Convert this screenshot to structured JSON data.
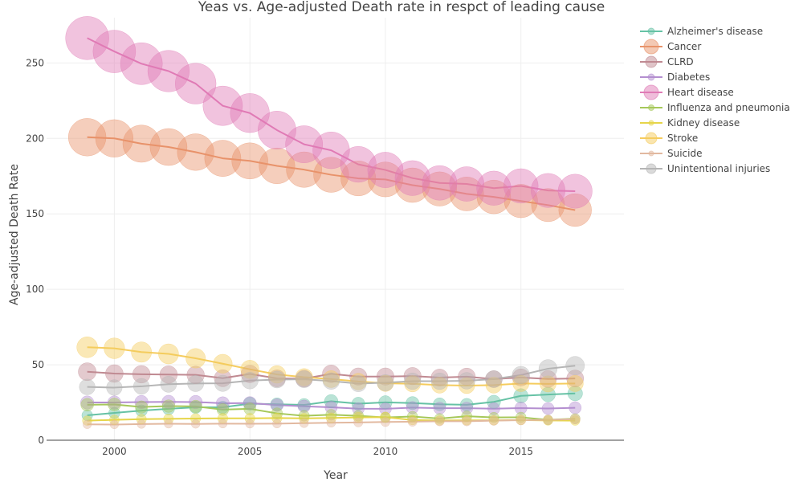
{
  "chart_data": {
    "type": "scatter",
    "title": "Yeas vs. Age-adjusted Death rate in respct of leading cause",
    "xlabel": "Year",
    "ylabel": "Age-adjusted Death Rate",
    "xlim": [
      1997.5,
      2018.8
    ],
    "ylim": [
      0,
      280
    ],
    "xticks": [
      2000,
      2005,
      2010,
      2015
    ],
    "yticks": [
      0,
      50,
      100,
      150,
      200,
      250
    ],
    "grid": true,
    "legend_position": "top-right",
    "marker_size_encodes": "death rate",
    "x": [
      1999,
      2000,
      2001,
      2002,
      2003,
      2004,
      2005,
      2006,
      2007,
      2008,
      2009,
      2010,
      2011,
      2012,
      2013,
      2014,
      2015,
      2016,
      2017
    ],
    "series": [
      {
        "name": "Alzheimer's disease",
        "color": "#66c2a5",
        "values": [
          16.5,
          18.1,
          19.6,
          20.8,
          21.8,
          21.8,
          24.2,
          23.8,
          23.4,
          25.8,
          24.2,
          25.1,
          24.6,
          23.8,
          23.5,
          25.4,
          29.4,
          30.3,
          31.0
        ]
      },
      {
        "name": "Cancer",
        "color": "#e8936a",
        "values": [
          200.8,
          200.0,
          196.5,
          194.3,
          190.9,
          186.8,
          185.1,
          181.8,
          179.3,
          175.9,
          173.5,
          172.8,
          169.0,
          166.5,
          163.2,
          161.2,
          158.5,
          155.8,
          152.5
        ]
      },
      {
        "name": "CLRD",
        "color": "#c08a92",
        "values": [
          45.4,
          44.2,
          43.7,
          43.5,
          43.3,
          41.1,
          43.9,
          41.0,
          40.8,
          44.0,
          42.2,
          42.2,
          42.5,
          41.5,
          42.1,
          40.5,
          41.6,
          40.6,
          40.9
        ]
      },
      {
        "name": "Diabetes",
        "color": "#b48fd0",
        "values": [
          25.0,
          25.0,
          25.3,
          25.4,
          25.3,
          24.5,
          24.6,
          23.3,
          22.5,
          21.8,
          20.9,
          20.8,
          21.6,
          21.2,
          21.2,
          20.9,
          21.3,
          21.0,
          21.5
        ]
      },
      {
        "name": "Heart disease",
        "color": "#e07bb5",
        "values": [
          266.5,
          257.6,
          249.5,
          244.6,
          236.3,
          221.6,
          216.8,
          205.5,
          196.1,
          192.1,
          182.8,
          179.1,
          173.7,
          170.5,
          169.8,
          167.0,
          168.5,
          165.5,
          165.0
        ]
      },
      {
        "name": "Influenza and pneumonia",
        "color": "#a6c85a",
        "values": [
          23.5,
          23.7,
          22.0,
          22.6,
          22.4,
          20.3,
          20.8,
          17.8,
          16.2,
          16.9,
          16.2,
          15.1,
          15.7,
          14.4,
          15.9,
          15.1,
          15.2,
          13.5,
          14.3
        ]
      },
      {
        "name": "Kidney disease",
        "color": "#e6d54a",
        "values": [
          13.0,
          13.5,
          14.0,
          14.2,
          14.4,
          14.5,
          14.5,
          14.7,
          14.5,
          14.8,
          15.1,
          15.3,
          13.4,
          13.1,
          13.2,
          13.2,
          13.4,
          13.1,
          13.0
        ]
      },
      {
        "name": "Stroke",
        "color": "#f5cc5e",
        "values": [
          61.6,
          60.9,
          58.4,
          57.2,
          54.3,
          50.7,
          47.0,
          43.6,
          41.8,
          40.5,
          38.9,
          37.7,
          37.4,
          36.5,
          36.2,
          36.5,
          37.6,
          37.3,
          37.6
        ]
      },
      {
        "name": "Suicide",
        "color": "#e2b9a0",
        "values": [
          10.5,
          10.4,
          10.7,
          10.9,
          10.8,
          11.0,
          10.9,
          11.0,
          11.3,
          11.6,
          11.8,
          12.1,
          12.3,
          12.6,
          12.6,
          13.0,
          13.3,
          13.5,
          14.0
        ]
      },
      {
        "name": "Unintentional injuries",
        "color": "#b5b5b5",
        "values": [
          35.3,
          34.9,
          35.7,
          37.1,
          37.6,
          37.7,
          39.5,
          40.2,
          40.4,
          39.2,
          37.5,
          38.1,
          39.1,
          39.1,
          39.4,
          40.5,
          43.2,
          47.4,
          49.4
        ]
      }
    ]
  }
}
